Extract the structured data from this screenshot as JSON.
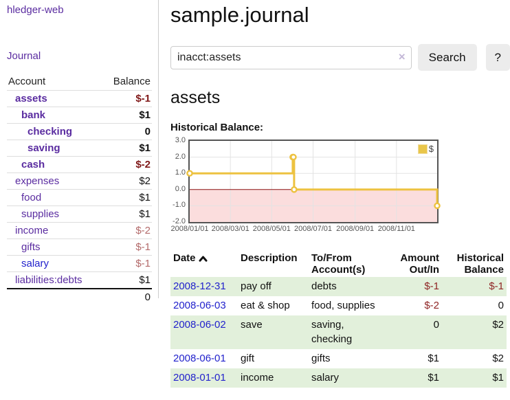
{
  "sidebar": {
    "brand": "hledger-web",
    "journal_link": "Journal",
    "columns": {
      "account": "Account",
      "balance": "Balance"
    },
    "accounts": [
      {
        "name": "assets",
        "balance": "$-1",
        "indent": 1,
        "bold": true,
        "balance_style": "neg-strong"
      },
      {
        "name": "bank",
        "balance": "$1",
        "indent": 2,
        "bold": true,
        "balance_style": "pos-strong"
      },
      {
        "name": "checking",
        "balance": "0",
        "indent": 3,
        "bold": true,
        "balance_style": "pos-strong"
      },
      {
        "name": "saving",
        "balance": "$1",
        "indent": 3,
        "bold": true,
        "balance_style": "pos-strong"
      },
      {
        "name": "cash",
        "balance": "$-2",
        "indent": 2,
        "bold": true,
        "balance_style": "neg-strong"
      },
      {
        "name": "expenses",
        "balance": "$2",
        "indent": 1,
        "bold": false,
        "balance_style": "pos"
      },
      {
        "name": "food",
        "balance": "$1",
        "indent": 2,
        "bold": false,
        "balance_style": "pos"
      },
      {
        "name": "supplies",
        "balance": "$1",
        "indent": 2,
        "bold": false,
        "balance_style": "pos"
      },
      {
        "name": "income",
        "balance": "$-2",
        "indent": 1,
        "bold": false,
        "balance_style": "neg-light"
      },
      {
        "name": "gifts",
        "balance": "$-1",
        "indent": 2,
        "bold": false,
        "balance_style": "neg-light"
      },
      {
        "name": "salary",
        "balance": "$-1",
        "indent": 2,
        "bold": false,
        "balance_style": "neg-light",
        "link_color": "blue"
      },
      {
        "name": "liabilities:debts",
        "balance": "$1",
        "indent": 1,
        "bold": false,
        "balance_style": "pos"
      }
    ],
    "total": "0"
  },
  "main": {
    "title": "sample.journal",
    "search": {
      "value": "inacct:assets",
      "clear_icon": "×",
      "button_label": "Search",
      "help_label": "?"
    },
    "account_heading": "assets",
    "chart_label": "Historical Balance:"
  },
  "chart_data": {
    "type": "line",
    "step": true,
    "title": "Historical Balance",
    "series": [
      {
        "name": "$",
        "color": "#edc240",
        "points": [
          [
            "2008-01-01",
            1
          ],
          [
            "2008-06-01",
            2
          ],
          [
            "2008-06-02",
            2
          ],
          [
            "2008-06-03",
            0
          ],
          [
            "2008-12-31",
            -1
          ]
        ]
      }
    ],
    "x_range": [
      "2008-01-01",
      "2008-12-31"
    ],
    "ylim": [
      -2,
      3
    ],
    "yticks": [
      3,
      2,
      1,
      0,
      -1,
      -2
    ],
    "ytick_labels": [
      "3.0",
      "2.0",
      "1.0",
      "0.0",
      "-1.0",
      "-2.0"
    ],
    "xticks": [
      "2008-01-01",
      "2008-03-01",
      "2008-05-01",
      "2008-07-01",
      "2008-09-01",
      "2008-11-01"
    ],
    "xtick_labels": [
      "2008/01/01",
      "2008/03/01",
      "2008/05/01",
      "2008/07/01",
      "2008/09/01",
      "2008/11/01"
    ],
    "legend": {
      "label": "$",
      "position": "top-right"
    },
    "grid": true,
    "grid_color": "#e3e3e3",
    "negative_region_color": "#fbdddd",
    "zero_line_color": "#8b1010",
    "border_color": "#545454"
  },
  "register": {
    "headers": {
      "date": "Date",
      "sort_icon": "chevron-up",
      "description": "Description",
      "accounts": "To/From Account(s)",
      "amount": "Amount Out/In",
      "balance": "Historical Balance"
    },
    "rows": [
      {
        "date": "2008-12-31",
        "description": "pay off",
        "accounts": "debts",
        "amount": "$-1",
        "amount_neg": true,
        "balance": "$-1",
        "balance_neg": true
      },
      {
        "date": "2008-06-03",
        "description": "eat & shop",
        "accounts": "food, supplies",
        "amount": "$-2",
        "amount_neg": true,
        "balance": "0",
        "balance_neg": false
      },
      {
        "date": "2008-06-02",
        "description": "save",
        "accounts": "saving, checking",
        "amount": "0",
        "amount_neg": false,
        "balance": "$2",
        "balance_neg": false
      },
      {
        "date": "2008-06-01",
        "description": "gift",
        "accounts": "gifts",
        "amount": "$1",
        "amount_neg": false,
        "balance": "$2",
        "balance_neg": false
      },
      {
        "date": "2008-01-01",
        "description": "income",
        "accounts": "salary",
        "amount": "$1",
        "amount_neg": false,
        "balance": "$1",
        "balance_neg": false
      }
    ]
  }
}
